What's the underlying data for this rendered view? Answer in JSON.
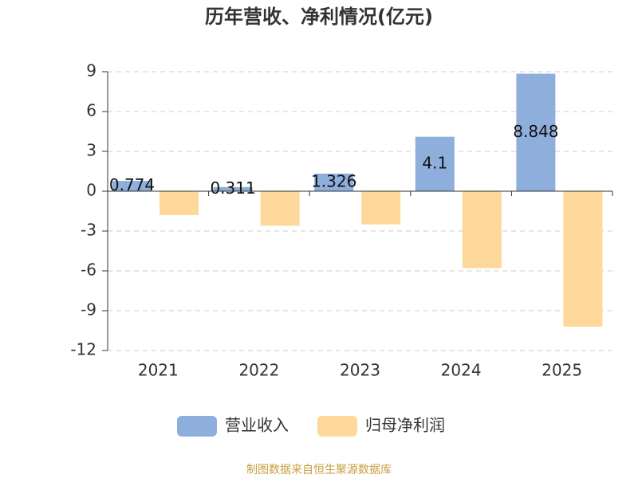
{
  "chart_data": {
    "type": "bar",
    "title": "历年营收、净利情况(亿元)",
    "categories": [
      "2021",
      "2022",
      "2023",
      "2024",
      "2025"
    ],
    "series": [
      {
        "name": "营业收入",
        "color": "#8eaedc",
        "values": [
          0.774,
          0.311,
          1.326,
          4.1,
          8.848
        ]
      },
      {
        "name": "归母净利润",
        "color": "#fdd89a",
        "values": [
          -1.8,
          -2.6,
          -2.5,
          -5.8,
          -10.2
        ]
      }
    ],
    "ylim": [
      -12,
      9
    ],
    "yticks": [
      -12,
      -9,
      -6,
      -3,
      0,
      3,
      6,
      9
    ],
    "grid": true,
    "source": "制图数据来自恒生聚源数据库"
  }
}
